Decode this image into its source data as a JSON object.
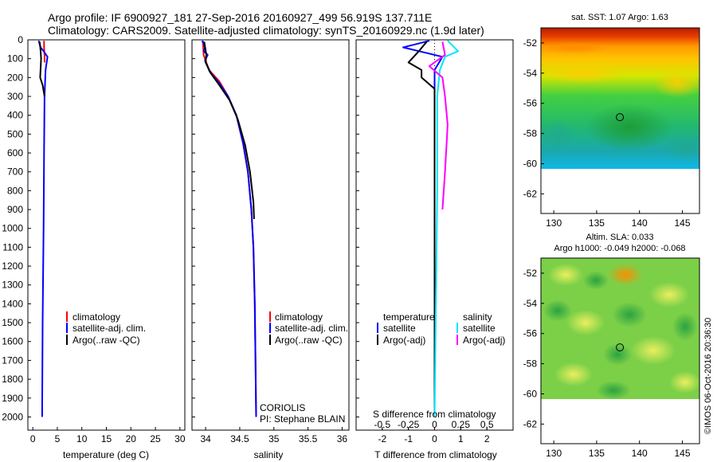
{
  "header": {
    "line1": "Argo profile: IF 6900927_181 27-Sep-2016 20160927_499 56.919S 137.711E",
    "line2": "Climatology: CARS2009. Satellite-adjusted climatology: synTS_20160929.nc (1.9d later)"
  },
  "colors": {
    "climatology": "#ff0000",
    "satellite": "#0000ff",
    "argo": "#000000",
    "sat_cyan": "#00e5ff",
    "argo_magenta": "#ff00ff"
  },
  "chart_data": [
    {
      "type": "line",
      "panel": "temperature",
      "xlabel": "temperature (deg C)",
      "ylabel": "",
      "xlim": [
        -1,
        31
      ],
      "ylim": [
        2070,
        0
      ],
      "xticks": [
        0,
        5,
        10,
        15,
        20,
        25,
        30
      ],
      "yticks": [
        0,
        100,
        200,
        300,
        400,
        500,
        600,
        700,
        800,
        900,
        1000,
        1100,
        1200,
        1300,
        1400,
        1500,
        1600,
        1700,
        1800,
        1900,
        2000
      ],
      "legend": [
        "climatology",
        "satellite-adj. clim.",
        "Argo(..raw -QC)"
      ],
      "series": [
        {
          "name": "climatology",
          "color": "#ff0000",
          "points": [
            [
              2.3,
              5
            ],
            [
              2.3,
              40
            ],
            [
              2.4,
              80
            ],
            [
              2.4,
              120
            ]
          ]
        },
        {
          "name": "satellite-adj. clim.",
          "color": "#0000ff",
          "points": [
            [
              1.2,
              5
            ],
            [
              1.6,
              40
            ],
            [
              2.2,
              60
            ],
            [
              3.0,
              90
            ],
            [
              2.6,
              160
            ],
            [
              2.4,
              300
            ],
            [
              2.3,
              600
            ],
            [
              2.2,
              1000
            ],
            [
              2.0,
              1500
            ],
            [
              1.9,
              2000
            ]
          ]
        },
        {
          "name": "Argo(..raw -QC)",
          "color": "#000000",
          "points": [
            [
              1.4,
              10
            ],
            [
              1.6,
              60
            ],
            [
              1.7,
              100
            ],
            [
              1.6,
              150
            ],
            [
              1.5,
              200
            ],
            [
              2.0,
              240
            ],
            [
              2.4,
              300
            ]
          ]
        }
      ]
    },
    {
      "type": "line",
      "panel": "salinity",
      "xlabel": "salinity",
      "xlim": [
        33.8,
        36.1
      ],
      "ylim": [
        2070,
        0
      ],
      "xticks": [
        34,
        34.5,
        35,
        35.5,
        36
      ],
      "legend": [
        "climatology",
        "satellite-adj. clim.",
        "Argo(..raw -QC)"
      ],
      "annotation": [
        "CORIOLIS",
        "PI: Stephane BLAIN"
      ],
      "series": [
        {
          "name": "climatology",
          "color": "#ff0000",
          "points": [
            [
              33.96,
              5
            ],
            [
              33.97,
              80
            ],
            [
              34.05,
              160
            ],
            [
              34.2,
              220
            ],
            [
              34.33,
              300
            ],
            [
              34.45,
              400
            ],
            [
              34.55,
              550
            ],
            [
              34.62,
              700
            ],
            [
              34.67,
              900
            ],
            [
              34.7,
              1100
            ],
            [
              34.72,
              1400
            ],
            [
              34.73,
              1700
            ],
            [
              34.74,
              2000
            ]
          ]
        },
        {
          "name": "satellite-adj. clim.",
          "color": "#0000ff",
          "points": [
            [
              33.95,
              5
            ],
            [
              33.99,
              40
            ],
            [
              33.97,
              60
            ],
            [
              34.03,
              80
            ],
            [
              33.99,
              110
            ],
            [
              34.06,
              170
            ],
            [
              34.2,
              230
            ],
            [
              34.33,
              300
            ],
            [
              34.45,
              400
            ],
            [
              34.55,
              550
            ],
            [
              34.62,
              700
            ],
            [
              34.67,
              900
            ],
            [
              34.7,
              1100
            ],
            [
              34.72,
              1400
            ],
            [
              34.73,
              1700
            ],
            [
              34.74,
              2000
            ]
          ]
        },
        {
          "name": "Argo(..raw -QC)",
          "color": "#000000",
          "points": [
            [
              33.98,
              10
            ],
            [
              34.01,
              80
            ],
            [
              34.0,
              120
            ],
            [
              34.08,
              180
            ],
            [
              34.2,
              240
            ],
            [
              34.35,
              320
            ],
            [
              34.47,
              420
            ],
            [
              34.58,
              560
            ],
            [
              34.65,
              700
            ],
            [
              34.7,
              860
            ],
            [
              34.71,
              950
            ]
          ]
        }
      ]
    },
    {
      "type": "line",
      "panel": "difference",
      "xlabel": "T difference from climatology",
      "xlabel2": "S difference from climatology",
      "xlim": [
        -3,
        3
      ],
      "x2lim": [
        -0.75,
        0.75
      ],
      "ylim": [
        2070,
        0
      ],
      "xticks": [
        -2,
        -1,
        0,
        1,
        2
      ],
      "x2ticks": [
        -0.5,
        -0.25,
        0,
        0.25,
        0.5
      ],
      "x2ticklabels": [
        "-0.5",
        "-0.25",
        "0",
        "0.25",
        "0.5"
      ],
      "legend_left_title": "temperature",
      "legend_right_title": "salinity",
      "legend": [
        "satellite",
        "Argo(-adj)",
        "satellite",
        "Argo(-adj)"
      ],
      "series": [
        {
          "name": "satellite",
          "color": "#0000ff",
          "points": [
            [
              -0.2,
              5
            ],
            [
              -1.2,
              40
            ],
            [
              -0.6,
              60
            ],
            [
              0.3,
              90
            ],
            [
              0.0,
              160
            ],
            [
              0.0,
              400
            ],
            [
              0.0,
              1000
            ],
            [
              0.0,
              2000
            ]
          ]
        },
        {
          "name": "Argo(-adj)",
          "color": "#000000",
          "points": [
            [
              -0.3,
              10
            ],
            [
              -0.6,
              60
            ],
            [
              -1.0,
              120
            ],
            [
              -0.5,
              160
            ],
            [
              -0.5,
              200
            ],
            [
              0.0,
              260
            ],
            [
              0.0,
              1200
            ],
            [
              0.0,
              2000
            ]
          ]
        },
        {
          "name": "satellite",
          "color": "#00e5ff",
          "points": [
            [
              0.5,
              5
            ],
            [
              0.9,
              60
            ],
            [
              0.4,
              90
            ],
            [
              0.2,
              160
            ],
            [
              0.1,
              300
            ],
            [
              0.1,
              800
            ],
            [
              0.0,
              2000
            ]
          ]
        },
        {
          "name": "Argo(-adj)",
          "color": "#ff00ff",
          "points": [
            [
              0.3,
              10
            ],
            [
              0.4,
              80
            ],
            [
              -0.2,
              140
            ],
            [
              0.3,
              200
            ],
            [
              0.4,
              300
            ],
            [
              0.5,
              450
            ],
            [
              0.4,
              700
            ],
            [
              0.3,
              900
            ]
          ]
        }
      ]
    },
    {
      "type": "heatmap",
      "panel": "sst-map",
      "title": "sat. SST: 1.07 Argo: 1.63",
      "xlim": [
        128.5,
        147
      ],
      "ylim": [
        -63.3,
        -51
      ],
      "xticks": [
        130,
        135,
        140,
        145
      ],
      "yticks": [
        -52,
        -54,
        -56,
        -58,
        -60,
        -62
      ],
      "ytick_labels": [
        "-52",
        "-54",
        "-56",
        "-58",
        "-60",
        "-62"
      ],
      "float_position": {
        "lon": 137.711,
        "lat": -56.919
      }
    },
    {
      "type": "heatmap",
      "panel": "sla-map",
      "title": "Altim. SLA: 0.033",
      "subtitle": "Argo h1000: -0.049 h2000: -0.068",
      "xlim": [
        128.5,
        147
      ],
      "ylim": [
        -63.3,
        -51
      ],
      "xticks": [
        130,
        135,
        140,
        145
      ],
      "yticks": [
        -52,
        -54,
        -56,
        -58,
        -60,
        -62
      ],
      "ytick_labels": [
        "-52",
        "-54",
        "-56",
        "-58",
        "-60",
        "-62"
      ],
      "float_position": {
        "lon": 137.711,
        "lat": -56.919
      }
    }
  ],
  "stamp": "©IMOS 06-Oct-2016 20:36:30"
}
